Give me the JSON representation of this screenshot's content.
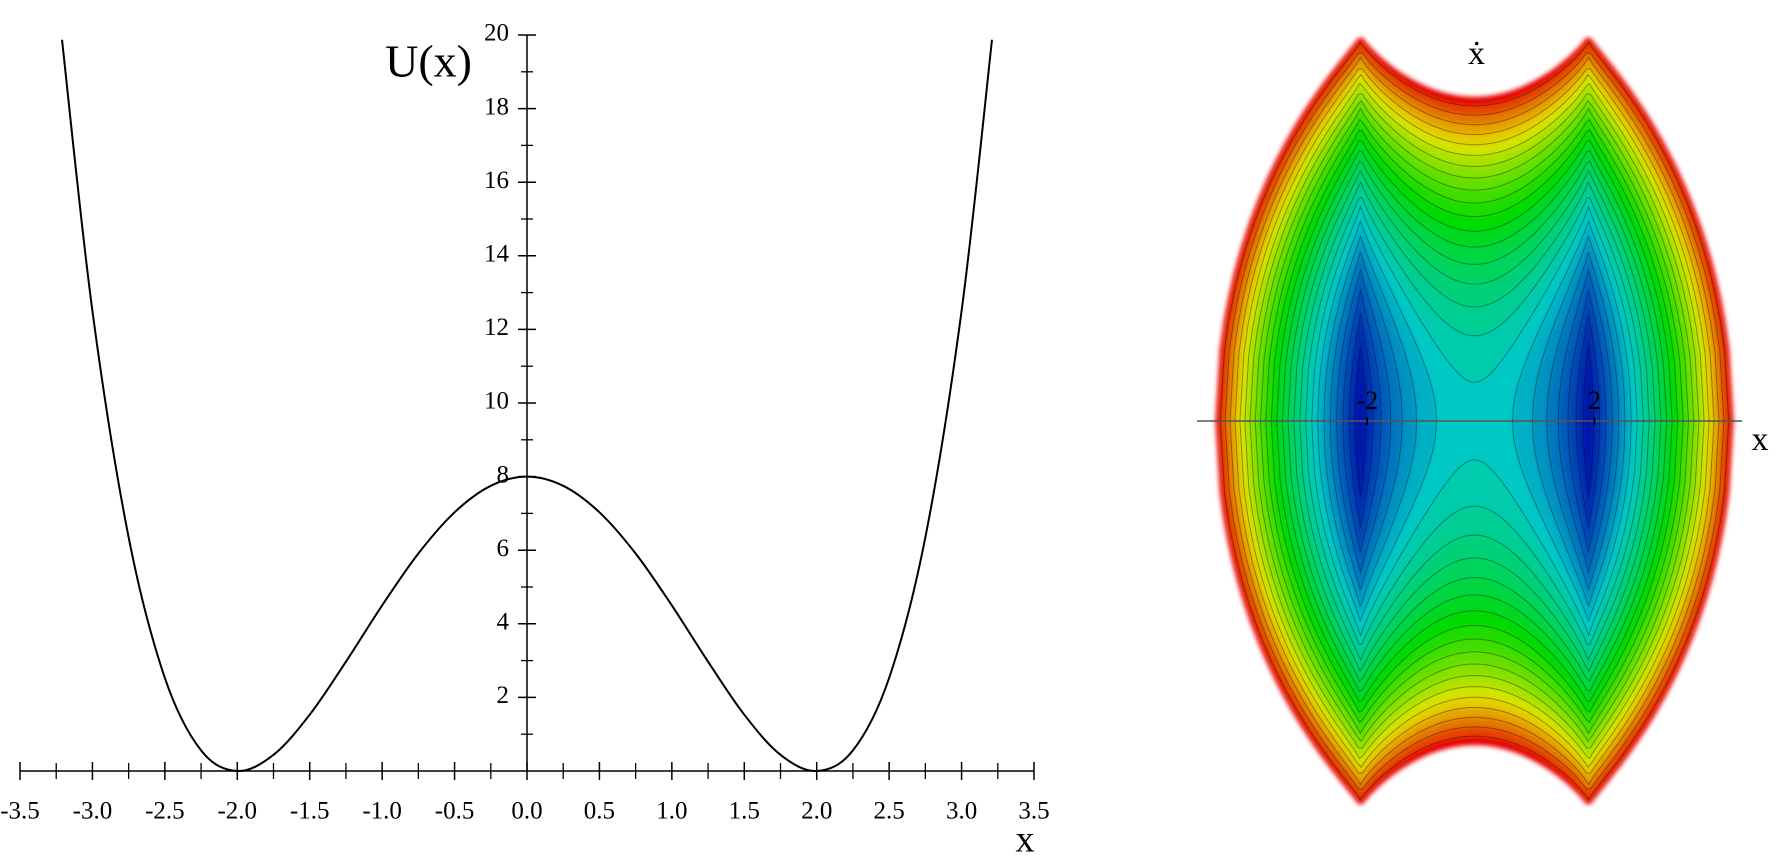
{
  "chart_data": [
    {
      "type": "line",
      "y_label": "U(x)",
      "x_label": "x",
      "x": [
        -3.21,
        -3,
        -2.75,
        -2.5,
        -2.25,
        -2,
        -1.75,
        -1.5,
        -1.25,
        -1,
        -0.75,
        -0.5,
        -0.25,
        0,
        0.25,
        0.5,
        0.75,
        1,
        1.25,
        1.5,
        1.75,
        2,
        2.25,
        2.5,
        2.75,
        3,
        3.21
      ],
      "series": [
        {
          "color": "#000000",
          "values": [
            19.87,
            12.5,
            6.35,
            2.53,
            0.56,
            0,
            0.44,
            1.53,
            2.97,
            4.5,
            5.91,
            7.03,
            7.75,
            8,
            7.75,
            7.03,
            5.91,
            4.5,
            2.97,
            1.53,
            0.44,
            0,
            0.56,
            2.53,
            6.35,
            12.5,
            19.87
          ]
        }
      ],
      "xlim": [
        -3.5,
        3.5
      ],
      "ylim": [
        0,
        20
      ],
      "xticks": [
        -3.5,
        {
          "value": -3,
          "label": "-3.0"
        },
        -2.5,
        {
          "value": -2,
          "label": "-2.0"
        },
        -1.5,
        {
          "value": -1,
          "label": "-1.0"
        },
        -0.5,
        {
          "value": 0,
          "label": "0.0"
        },
        0.5,
        {
          "value": 1,
          "label": "1.0"
        },
        1.5,
        {
          "value": 2,
          "label": "2.0"
        },
        2.5,
        {
          "value": 3,
          "label": "3.0"
        },
        3.5
      ],
      "xminor_ticks": [
        -3.25,
        -2.75,
        -2.25,
        -1.75,
        -1.25,
        -0.75,
        -0.25,
        0.25,
        0.75,
        1.25,
        1.75,
        2.25,
        2.75,
        3.25
      ],
      "yticks": [
        2,
        4,
        6,
        8,
        10,
        12,
        14,
        16,
        18,
        20
      ],
      "yminor_ticks": [
        1,
        3,
        5,
        7,
        9,
        11,
        13,
        15,
        17,
        19
      ]
    },
    {
      "type": "contour",
      "x_label": "x",
      "y_label": "ẋ",
      "xlim": [
        -5,
        4.6
      ],
      "xticks": [
        -2,
        2
      ]
    }
  ]
}
